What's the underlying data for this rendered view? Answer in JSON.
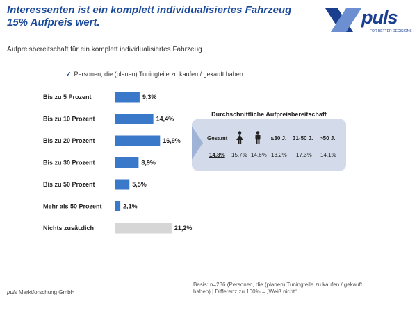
{
  "header": {
    "title": "Interessenten ist ein komplett individualisiertes Fahrzeug 15% Aufpreis wert.",
    "subtitle": "Aufpreisbereitschaft für ein komplett individualisiertes Fahrzeug"
  },
  "logo": {
    "text": "puls",
    "tagline": "FOR BETTER DECISIONS",
    "color": "#1b3f8f"
  },
  "filter_note": "Personen, die (planen) Tuningteile zu kaufen / gekauft haben",
  "chart_data": {
    "type": "bar",
    "orientation": "horizontal",
    "categories": [
      "Bis zu 5 Prozent",
      "Bis zu 10 Prozent",
      "Bis zu 20 Prozent",
      "Bis zu 30 Prozent",
      "Bis zu 50 Prozent",
      "Mehr als 50 Prozent",
      "Nichts zusätzlich"
    ],
    "values": [
      9.3,
      14.4,
      16.9,
      8.9,
      5.5,
      2.1,
      21.2
    ],
    "value_labels": [
      "9,3%",
      "14,4%",
      "16,9%",
      "8,9%",
      "5,5%",
      "2,1%",
      "21,2%"
    ],
    "colors": [
      "#3a78c9",
      "#3a78c9",
      "#3a78c9",
      "#3a78c9",
      "#3a78c9",
      "#3a78c9",
      "#d6d6d6"
    ],
    "xlim": [
      0,
      22
    ],
    "grid": false
  },
  "summary": {
    "title": "Durchschnittliche Aufpreisbereitschaft",
    "headers": [
      "Gesamt",
      "female-icon",
      "male-icon",
      "≤30 J.",
      "31-50 J.",
      ">50 J."
    ],
    "values": [
      "14,8%",
      "15,7%",
      "14,6%",
      "13,2%",
      "17,3%",
      "14,1%"
    ]
  },
  "footer": {
    "brand": "puls",
    "company": " Marktforschung GmbH",
    "basis": "Basis: n=236 (Personen, die (planen) Tuningteile zu kaufen / gekauft haben) | Differenz zu 100% = „Weiß nicht“"
  }
}
